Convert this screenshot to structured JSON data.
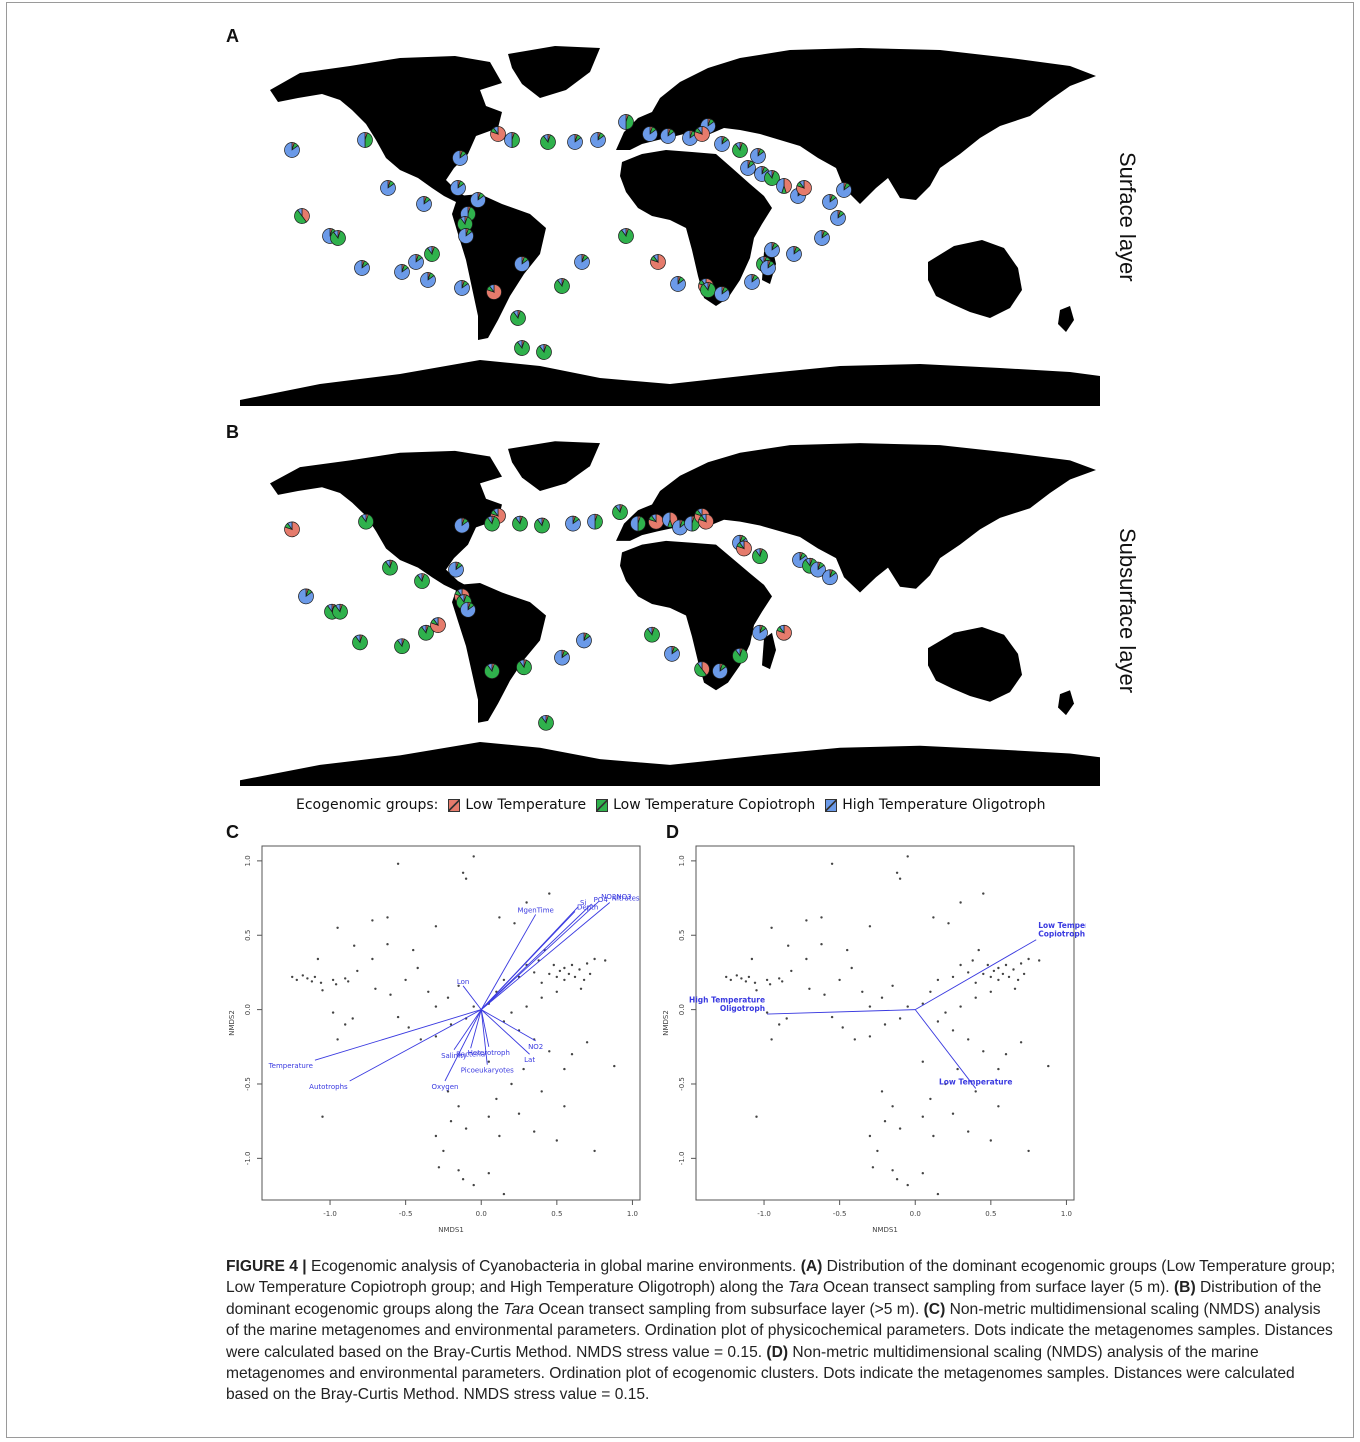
{
  "figure": {
    "panels": {
      "a": {
        "letter": "A",
        "layer_label": "Surface layer"
      },
      "b": {
        "letter": "B",
        "layer_label": "Subsurface layer"
      },
      "c": {
        "letter": "C"
      },
      "d": {
        "letter": "D"
      }
    },
    "legend": {
      "title": "Ecogenomic groups:",
      "items": [
        {
          "label": "Low Temperature",
          "color": "#e57b6c"
        },
        {
          "label": "Low Temperature  Copiotroph",
          "color": "#2fb14c"
        },
        {
          "label": "High Temperature  Oligotroph",
          "color": "#6b9ae8"
        }
      ]
    },
    "map_land_color": "#000000",
    "vector_color": "#3a3ae0",
    "point_color": "#444444"
  },
  "chart_data": [
    {
      "type": "scatter",
      "panel": "C",
      "xlabel": "NMDS1",
      "ylabel": "NMDS2",
      "xlim": [
        -1.45,
        1.05
      ],
      "ylim": [
        -1.28,
        1.1
      ],
      "xticks": [
        "-1.0",
        "-0.5",
        "0.0",
        "0.5",
        "1.0"
      ],
      "yticks": [
        "-1.0",
        "-0.5",
        "0.0",
        "0.5",
        "1.0"
      ],
      "vectors": [
        {
          "label": "NO2NO3",
          "x": 0.78,
          "y": 0.73
        },
        {
          "label": "Nitrates",
          "x": 0.85,
          "y": 0.72
        },
        {
          "label": "PO4",
          "x": 0.73,
          "y": 0.71
        },
        {
          "label": "Si",
          "x": 0.64,
          "y": 0.69
        },
        {
          "label": "Depth",
          "x": 0.62,
          "y": 0.66
        },
        {
          "label": "MgenTime",
          "x": 0.36,
          "y": 0.64
        },
        {
          "label": "Lon",
          "x": -0.12,
          "y": 0.16
        },
        {
          "label": "NO2",
          "x": 0.36,
          "y": -0.21
        },
        {
          "label": "Heterotroph",
          "x": 0.05,
          "y": -0.25
        },
        {
          "label": "Bacteria",
          "x": -0.07,
          "y": -0.26
        },
        {
          "label": "Salinity",
          "x": -0.18,
          "y": -0.27
        },
        {
          "label": "Lat",
          "x": 0.32,
          "y": -0.3
        },
        {
          "label": "Temperature",
          "x": -1.1,
          "y": -0.34
        },
        {
          "label": "Picoeukaryotes",
          "x": 0.04,
          "y": -0.37
        },
        {
          "label": "Autotrophs",
          "x": -0.87,
          "y": -0.48
        },
        {
          "label": "Oxygen",
          "x": -0.24,
          "y": -0.48
        }
      ]
    },
    {
      "type": "scatter",
      "panel": "D",
      "xlabel": "NMDS1",
      "ylabel": "NMDS2",
      "xlim": [
        -1.45,
        1.05
      ],
      "ylim": [
        -1.28,
        1.1
      ],
      "xticks": [
        "-1.0",
        "-0.5",
        "0.0",
        "0.5",
        "1.0"
      ],
      "yticks": [
        "-1.0",
        "-0.5",
        "0.0",
        "0.5",
        "1.0"
      ],
      "vectors": [
        {
          "label": "Low Temperature\nCopiotroph",
          "x": 0.8,
          "y": 0.47
        },
        {
          "label": "High Temperature\nOligotroph",
          "x": -0.98,
          "y": -0.03
        },
        {
          "label": "Low Temperature",
          "x": 0.4,
          "y": -0.53
        }
      ]
    }
  ],
  "caption": {
    "label": "FIGURE 4 |",
    "intro": " Ecogenomic analysis of Cyanobacteria in global marine environments. ",
    "a_label": "(A)",
    "a_text_1": " Distribution of the dominant ecogenomic groups (Low Temperature group; Low Temperature Copiotroph group; and High Temperature Oligotroph) along the ",
    "tara": "Tara",
    "a_text_2": " Ocean transect sampling from surface layer (5 m). ",
    "b_label": "(B)",
    "b_text_1": " Distribution of the dominant ecogenomic groups along the ",
    "b_text_2": " Ocean transect sampling from subsurface layer (>5 m). ",
    "c_label": "(C)",
    "c_text": " Non-metric multidimensional scaling (NMDS) analysis of the marine metagenomes and environmental parameters. Ordination plot of physicochemical parameters. Dots indicate the metagenomes samples. Distances were calculated based on the Bray-Curtis Method. NMDS stress value = 0.15. ",
    "d_label": "(D)",
    "d_text": " Non-metric multidimensional scaling (NMDS) analysis of the marine metagenomes and environmental parameters. Ordination plot of ecogenomic clusters. Dots indicate the metagenomes samples. Distances were calculated based on the Bray-Curtis Method. NMDS stress value = 0.15."
  }
}
